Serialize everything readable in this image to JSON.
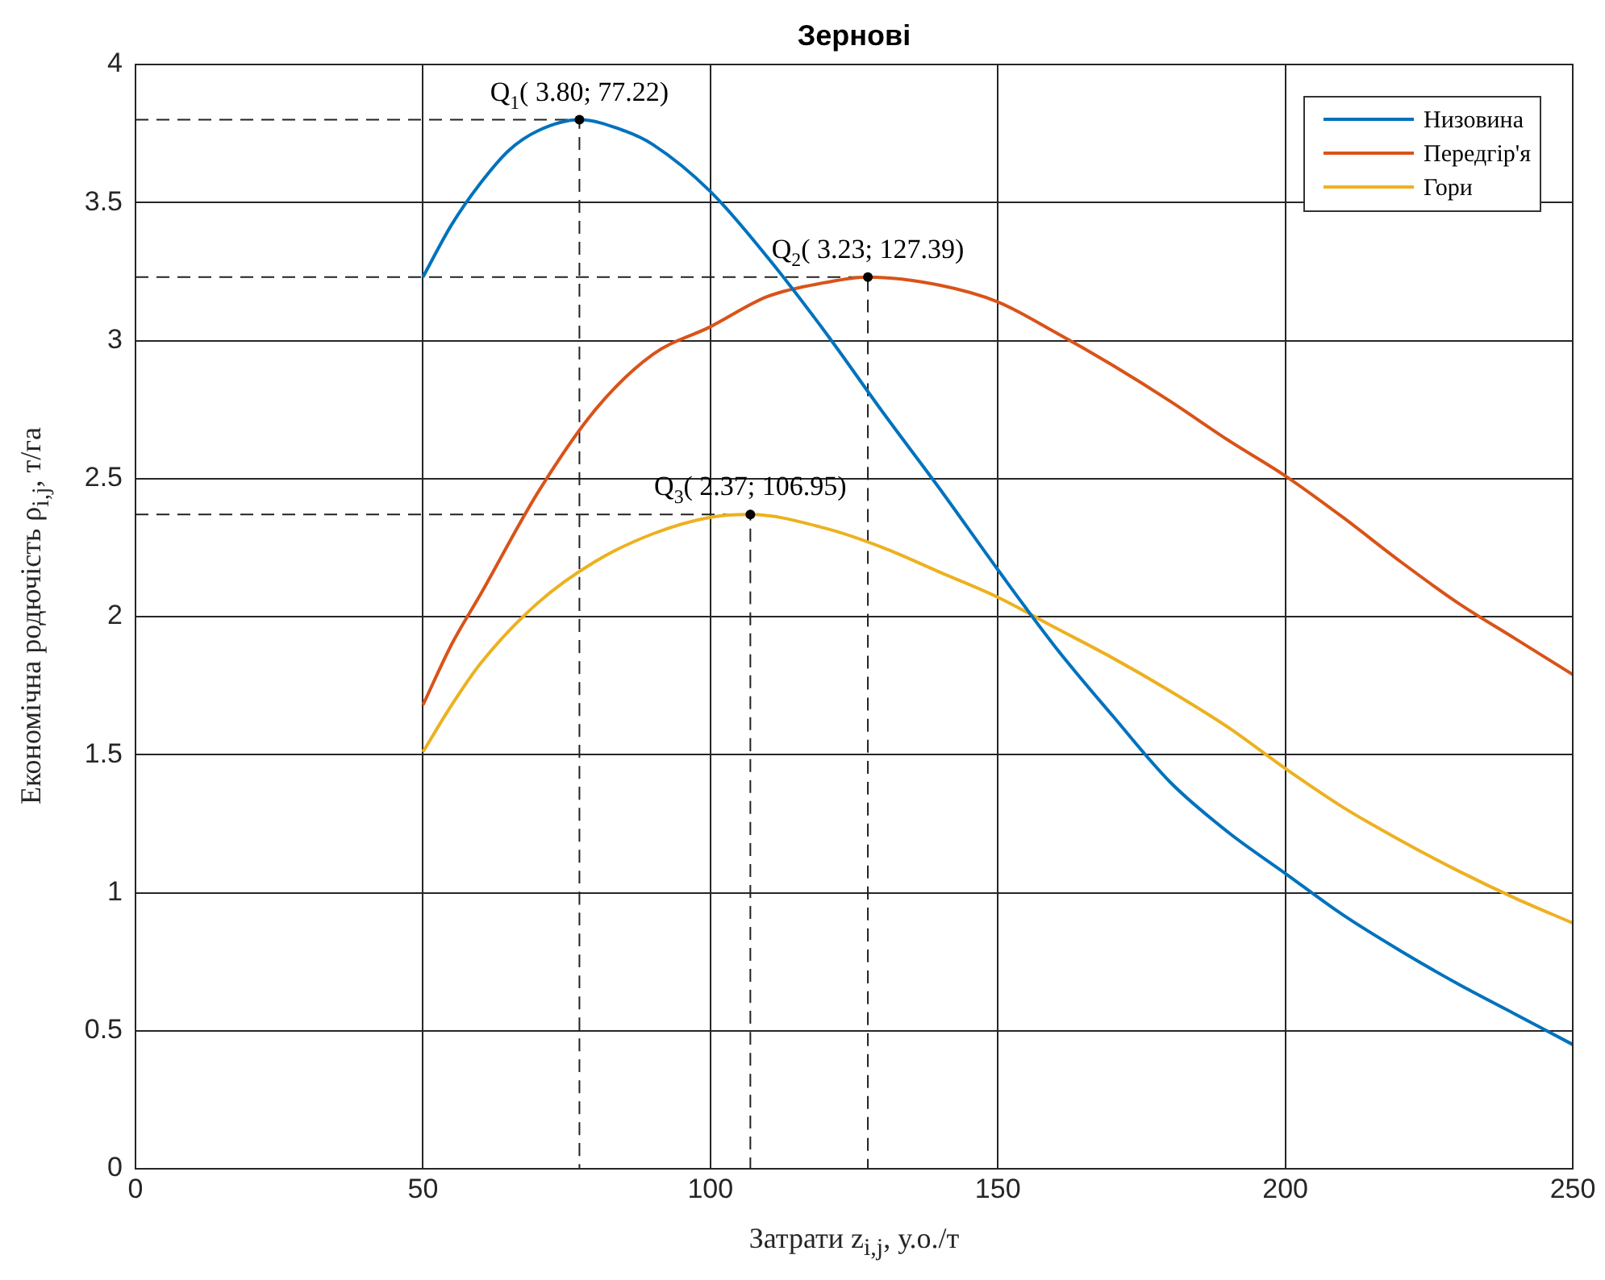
{
  "chart_data": {
    "type": "line",
    "title": "Зернові",
    "xlabel": "Затрати z$_{i,j}$, у.о./т",
    "ylabel": "Економічна родючість ρ$_{i,j}$, т/га",
    "xlim": [
      0,
      250
    ],
    "ylim": [
      0,
      4
    ],
    "xticks": [
      0,
      50,
      100,
      150,
      200,
      250
    ],
    "yticks": [
      0,
      0.5,
      1,
      1.5,
      2,
      2.5,
      3,
      3.5,
      4
    ],
    "grid": true,
    "legend": "top right",
    "line_style": "solid",
    "series": [
      {
        "name": "Низовина",
        "color": "#0072bd",
        "x": [
          50,
          55,
          60,
          65,
          70,
          77.22,
          85,
          90,
          100,
          110,
          120,
          130,
          140,
          150,
          160,
          170,
          180,
          190,
          200,
          210,
          220,
          230,
          240,
          250
        ],
        "values": [
          3.23,
          3.42,
          3.57,
          3.69,
          3.76,
          3.8,
          3.76,
          3.71,
          3.54,
          3.3,
          3.03,
          2.74,
          2.46,
          2.17,
          1.89,
          1.64,
          1.4,
          1.22,
          1.07,
          0.92,
          0.79,
          0.67,
          0.56,
          0.45
        ]
      },
      {
        "name": "Передгір'я",
        "color": "#d95319",
        "x": [
          50,
          55,
          60,
          70,
          80,
          90,
          100,
          110,
          120,
          127.39,
          140,
          150,
          160,
          170,
          180,
          190,
          200,
          210,
          220,
          230,
          240,
          250
        ],
        "values": [
          1.68,
          1.9,
          2.08,
          2.45,
          2.75,
          2.95,
          3.05,
          3.16,
          3.21,
          3.23,
          3.2,
          3.14,
          3.03,
          2.91,
          2.78,
          2.64,
          2.51,
          2.36,
          2.2,
          2.05,
          1.92,
          1.79
        ]
      },
      {
        "name": "Гори",
        "color": "#edb120",
        "x": [
          50,
          55,
          60,
          70,
          80,
          90,
          100,
          106.95,
          120,
          130,
          140,
          150,
          160,
          170,
          180,
          190,
          200,
          210,
          220,
          230,
          240,
          250
        ],
        "values": [
          1.51,
          1.68,
          1.83,
          2.05,
          2.2,
          2.3,
          2.36,
          2.37,
          2.32,
          2.25,
          2.16,
          2.07,
          1.96,
          1.85,
          1.73,
          1.6,
          1.45,
          1.31,
          1.19,
          1.08,
          0.98,
          0.89
        ]
      },
      {
        "type": "line",
        "color": "#222222",
        "line_style": "dashed",
        "x": [
          0,
          77.22,
          77.22
        ],
        "values": [
          3.8,
          3.8,
          0
        ]
      },
      {
        "type": "line",
        "color": "#222222",
        "line_style": "dashed",
        "x": [
          0,
          127.39,
          127.39
        ],
        "values": [
          3.23,
          3.23,
          0
        ]
      },
      {
        "type": "line",
        "color": "#222222",
        "line_style": "dashed",
        "x": [
          0,
          106.95,
          106.95
        ],
        "values": [
          2.37,
          2.37,
          0
        ]
      }
    ],
    "annotations": [
      {
        "text": "Q$_{1}$( 3.80; 77.22)",
        "x": 77.22,
        "y": 3.8
      },
      {
        "text": "Q$_{2}$( 3.23; 127.39)",
        "x": 127.39,
        "y": 3.23
      },
      {
        "text": "Q$_{3}$( 2.37; 106.95)",
        "x": 106.95,
        "y": 2.37
      }
    ]
  }
}
